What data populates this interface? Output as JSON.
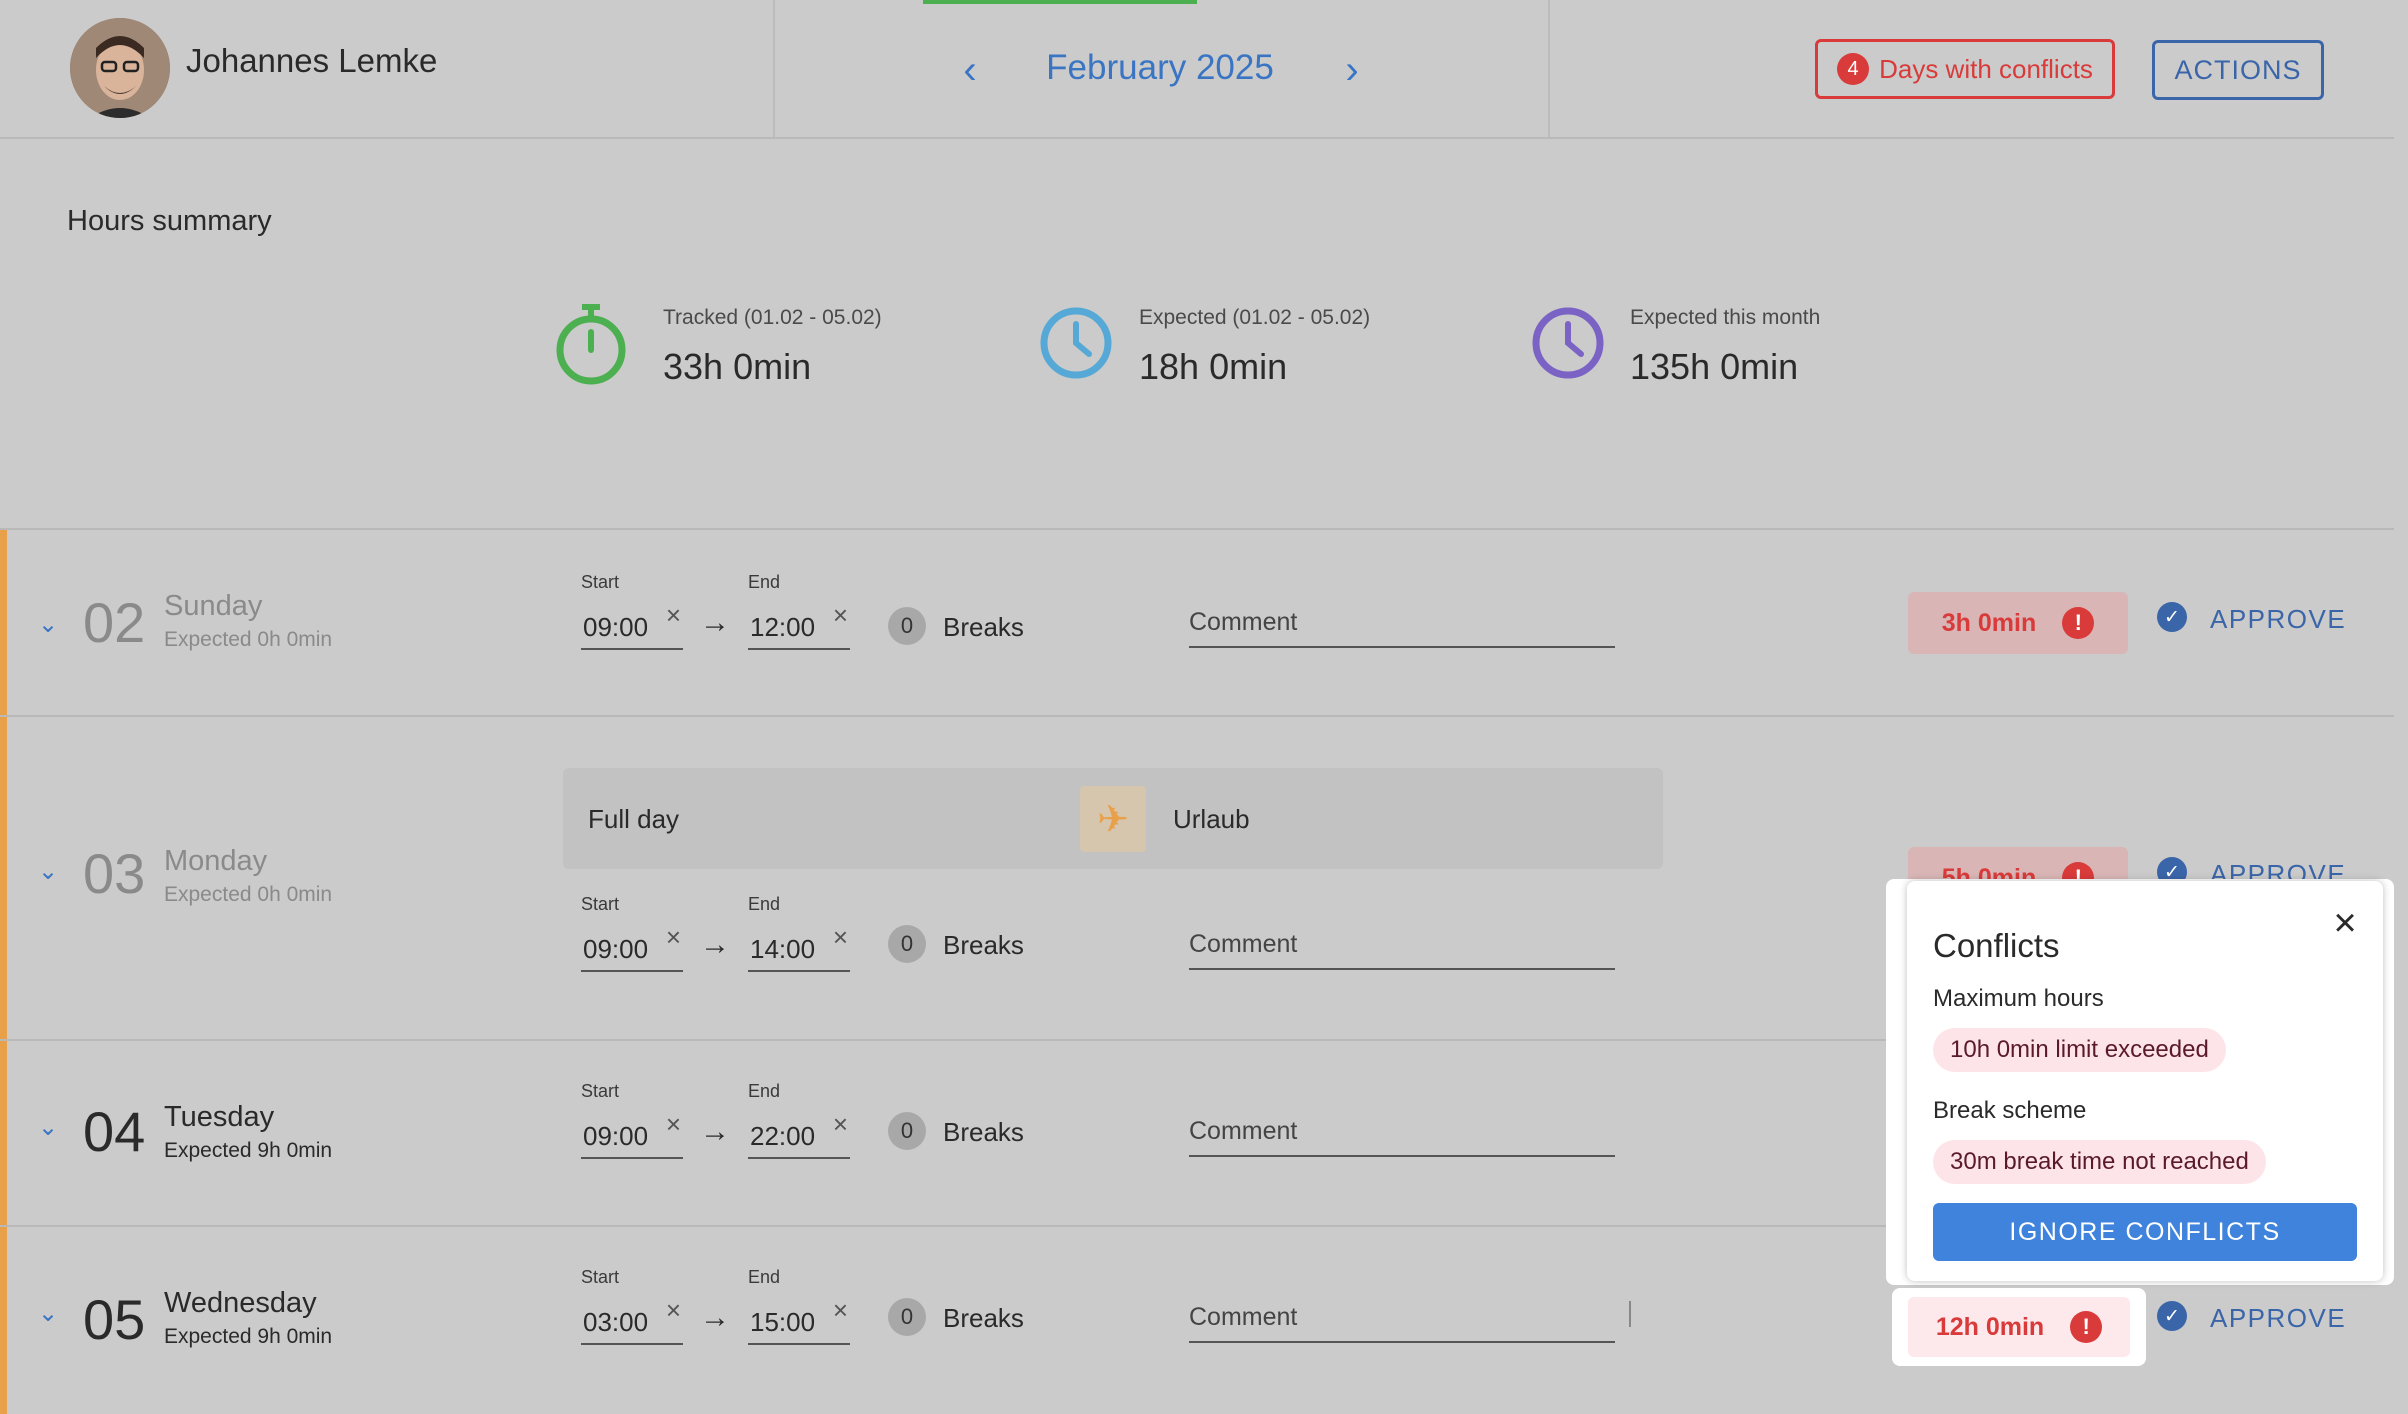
{
  "header": {
    "user_name": "Johannes Lemke",
    "month": "February 2025",
    "prev_icon": "chevron-left-icon",
    "next_icon": "chevron-right-icon",
    "conflicts_count": "4",
    "conflicts_label": "Days with conflicts",
    "actions_label": "ACTIONS"
  },
  "summary": {
    "title": "Hours summary",
    "stats": [
      {
        "label": "Tracked (01.02 - 05.02)",
        "value": "33h 0min",
        "icon": "stopwatch-icon",
        "color": "#4caf50"
      },
      {
        "label": "Expected (01.02 - 05.02)",
        "value": "18h 0min",
        "icon": "clock-icon",
        "color": "#56a9d6"
      },
      {
        "label": "Expected this month",
        "value": "135h 0min",
        "icon": "clock-icon",
        "color": "#7a63c4"
      }
    ]
  },
  "labels": {
    "start": "Start",
    "end": "End",
    "breaks": "Breaks",
    "comment": "Comment",
    "approve": "APPROVE"
  },
  "days": [
    {
      "num": "02",
      "name": "Sunday",
      "expected": "Expected 0h 0min",
      "start": "09:00",
      "end": "12:00",
      "breaks": "0",
      "duration": "3h 0min"
    },
    {
      "num": "03",
      "name": "Monday",
      "expected": "Expected 0h 0min",
      "start": "09:00",
      "end": "14:00",
      "breaks": "0",
      "duration": "5h 0min",
      "absence": {
        "period": "Full day",
        "type": "Urlaub",
        "icon": "airplane-icon"
      }
    },
    {
      "num": "04",
      "name": "Tuesday",
      "expected": "Expected 9h 0min",
      "start": "09:00",
      "end": "22:00",
      "breaks": "0"
    },
    {
      "num": "05",
      "name": "Wednesday",
      "expected": "Expected 9h 0min",
      "start": "03:00",
      "end": "15:00",
      "breaks": "0",
      "duration": "12h 0min"
    }
  ],
  "popup": {
    "title": "Conflicts",
    "close_icon": "close-icon",
    "max_hours_title": "Maximum hours",
    "max_hours_msg": "10h 0min limit exceeded",
    "break_title": "Break scheme",
    "break_msg": "30m break time not reached",
    "ignore_label": "IGNORE CONFLICTS"
  }
}
